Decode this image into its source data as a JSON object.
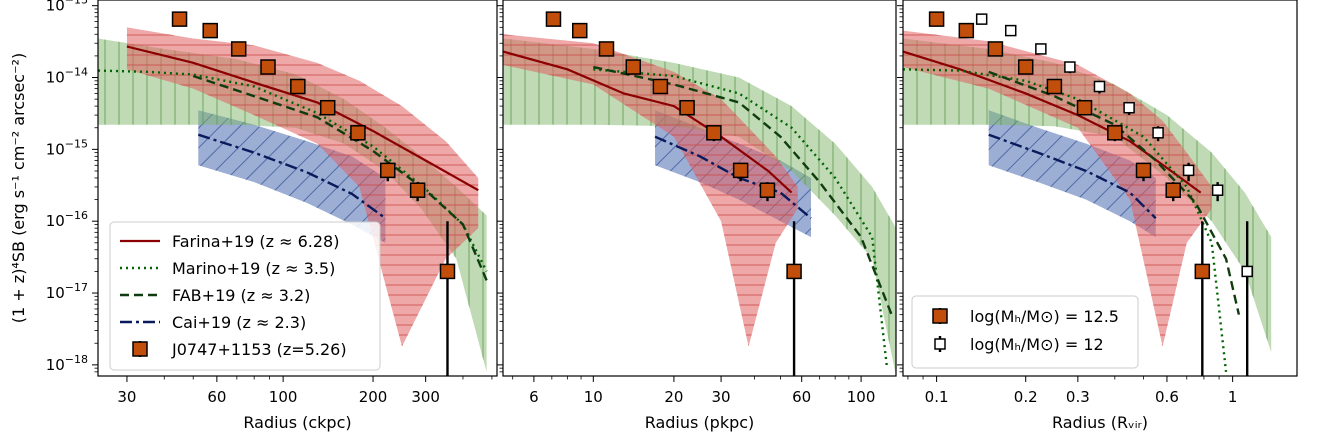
{
  "ylabel": "(1 + z)⁴SB (erg s⁻¹ cm⁻² arcsec⁻²)",
  "y_ticks": [
    {
      "value": 1e-13,
      "base": "10",
      "exp": "−13"
    },
    {
      "value": 1e-14,
      "base": "10",
      "exp": "−14"
    },
    {
      "value": 1e-15,
      "base": "10",
      "exp": "−15"
    },
    {
      "value": 1e-16,
      "base": "10",
      "exp": "−16"
    },
    {
      "value": 1e-17,
      "base": "10",
      "exp": "−17"
    },
    {
      "value": 1e-18,
      "base": "10",
      "exp": "−18"
    }
  ],
  "colors": {
    "farina": "#8b0000",
    "marino": "#006400",
    "fab": "#0f3d0f",
    "cai": "#0a1a5c",
    "red_band": "#e06060",
    "green_band": "#7fb56b",
    "blue_band": "#5a78b8",
    "square": "#c24e0b"
  },
  "legend_panel1": [
    {
      "label": "Farina+19 (z ≈ 6.28)",
      "style": "solid",
      "color": "#8b0000"
    },
    {
      "label": "Marino+19 (z ≈ 3.5)",
      "style": "dotted",
      "color": "#006400"
    },
    {
      "label": "FAB+19 (z ≈ 3.2)",
      "style": "dashed",
      "color": "#0f3d0f"
    },
    {
      "label": "Cai+19 (z ≈ 2.3)",
      "style": "dashdot",
      "color": "#0a1a5c"
    },
    {
      "label": "J0747+1153 (z=5.26)",
      "style": "square",
      "color": "#c24e0b"
    }
  ],
  "legend_panel3": [
    {
      "label": "log(Mₕ/M⊙) = 12.5",
      "style": "square-filled"
    },
    {
      "label": "log(Mₕ/M⊙) = 12",
      "style": "square-open"
    }
  ],
  "chart_data": [
    {
      "type": "line",
      "xlabel": "Radius (ckpc)",
      "xscale": "log",
      "yscale": "log",
      "xlim": [
        24,
        520
      ],
      "ylim": [
        7e-19,
        1.2e-13
      ],
      "xticks": [
        30,
        60,
        100,
        200,
        300
      ],
      "xtick_labels": [
        "30",
        "60",
        "100",
        "200",
        "300"
      ],
      "legend_loc": "lower-left",
      "series": [
        {
          "name": "Farina+19 (z ≈ 6.28)",
          "style": "solid",
          "x": [
            30,
            50,
            80,
            130,
            200,
            300,
            450
          ],
          "y": [
            2.7e-14,
            1.6e-14,
            8.5e-15,
            4.5e-15,
            1.8e-15,
            7e-16,
            2.7e-16
          ]
        },
        {
          "name": "Marino+19 (z ≈ 3.5)",
          "style": "dotted",
          "x": [
            24,
            35,
            50,
            80,
            130,
            200,
            300,
            400,
            480
          ],
          "y": [
            1.25e-14,
            1.2e-14,
            1.1e-14,
            7.5e-15,
            3.2e-15,
            1.1e-15,
            2.8e-16,
            9e-17,
            2e-17
          ]
        },
        {
          "name": "FAB+19 (z ≈ 3.2)",
          "style": "dashed",
          "x": [
            50,
            80,
            130,
            200,
            300,
            400,
            480
          ],
          "y": [
            1.05e-14,
            5.5e-15,
            2.8e-15,
            9.5e-16,
            2.7e-16,
            9e-17,
            1.5e-17
          ]
        },
        {
          "name": "Cai+19 (z ≈ 2.3)",
          "style": "dashdot",
          "x": [
            52,
            80,
            120,
            170,
            220
          ],
          "y": [
            1.6e-15,
            9e-16,
            4.8e-16,
            2.4e-16,
            1.1e-16
          ]
        }
      ],
      "bands": [
        {
          "name": "Farina+19 band",
          "color": "red",
          "hatch": "horizontal",
          "x": [
            30,
            50,
            80,
            130,
            180,
            250,
            350,
            450
          ],
          "upper": [
            5e-14,
            3.5e-14,
            2.8e-14,
            1.6e-14,
            9e-15,
            4e-15,
            1.3e-15,
            4e-16
          ],
          "lower": [
            1.3e-14,
            7e-15,
            3e-15,
            1.2e-15,
            3e-16,
            1.8e-18,
            3e-17,
            8e-17
          ]
        },
        {
          "name": "Marino+19 band",
          "color": "green",
          "hatch": "vertical",
          "x": [
            24,
            40,
            70,
            110,
            160,
            220,
            290,
            380,
            480
          ],
          "upper": [
            3.5e-14,
            2.5e-14,
            1.8e-14,
            1.1e-14,
            5e-15,
            2e-15,
            8e-16,
            3e-16,
            1.2e-16
          ],
          "lower": [
            2.2e-15,
            2.2e-15,
            2.2e-15,
            2e-15,
            1.2e-15,
            5e-16,
            1.5e-16,
            3e-17,
            8e-19
          ]
        },
        {
          "name": "Cai+19 band",
          "color": "blue",
          "hatch": "diagonal",
          "x": [
            52,
            80,
            120,
            170,
            220
          ],
          "upper": [
            3.5e-15,
            2.2e-15,
            1.3e-15,
            8e-16,
            4e-16
          ],
          "lower": [
            6e-16,
            3.5e-16,
            1.8e-16,
            9e-17,
            5e-17
          ]
        }
      ],
      "points": [
        {
          "name": "J0747+1153 (z=5.26)",
          "marker": "square",
          "fill": "filled",
          "x": [
            45,
            57,
            71,
            89,
            112,
            141,
            178,
            224,
            282,
            355
          ],
          "y": [
            6.5e-14,
            4.5e-14,
            2.5e-14,
            1.4e-14,
            7.5e-15,
            3.8e-15,
            1.7e-15,
            5.1e-16,
            2.7e-16,
            2e-17
          ],
          "yerr_low": [
            5.5e-14,
            4e-14,
            2.1e-14,
            1.15e-14,
            6e-15,
            3e-15,
            1.3e-15,
            3.6e-16,
            1.9e-16,
            7e-19
          ],
          "yerr_high": [
            7.5e-14,
            5.2e-14,
            2.9e-14,
            1.65e-14,
            9e-15,
            4.5e-15,
            2.1e-15,
            6.5e-16,
            3.5e-16,
            1e-16
          ]
        }
      ]
    },
    {
      "type": "line",
      "xlabel": "Radius (pkpc)",
      "xscale": "log",
      "yscale": "log",
      "xlim": [
        4.6,
        135
      ],
      "ylim": [
        7e-19,
        1.2e-13
      ],
      "xticks": [
        6,
        10,
        20,
        30,
        60,
        100
      ],
      "xtick_labels": [
        "6",
        "10",
        "20",
        "30",
        "60",
        "100"
      ],
      "series": [
        {
          "name": "Farina+19 (z ≈ 6.28)",
          "style": "solid",
          "x": [
            4.6,
            8,
            13,
            20,
            30,
            45,
            55
          ],
          "y": [
            2.3e-14,
            1.3e-14,
            6e-15,
            4e-15,
            1.5e-15,
            5e-16,
            2.5e-16
          ]
        },
        {
          "name": "Marino+19 (z ≈ 3.5)",
          "style": "dotted",
          "x": [
            10,
            20,
            35,
            55,
            80,
            110,
            125
          ],
          "y": [
            1.3e-14,
            1.05e-14,
            6e-15,
            2e-15,
            4e-16,
            6e-17,
            9e-19
          ]
        },
        {
          "name": "FAB+19 (z ≈ 3.2)",
          "style": "dashed",
          "x": [
            10,
            20,
            35,
            50,
            70,
            100,
            130
          ],
          "y": [
            1.4e-14,
            8e-15,
            4.5e-15,
            1.5e-15,
            3.5e-16,
            6e-17,
            5e-18
          ]
        },
        {
          "name": "Cai+19 (z ≈ 2.3)",
          "style": "dashdot",
          "x": [
            17,
            25,
            35,
            50,
            65
          ],
          "y": [
            1.5e-15,
            8e-16,
            4e-16,
            2.5e-16,
            1.1e-16
          ]
        }
      ],
      "bands": [
        {
          "name": "Farina+19 band",
          "color": "red",
          "hatch": "horizontal",
          "x": [
            4.6,
            10,
            20,
            30,
            38,
            48,
            58
          ],
          "upper": [
            4e-14,
            3e-14,
            1.2e-14,
            5e-15,
            2e-15,
            8e-16,
            3e-16
          ],
          "lower": [
            1.5e-14,
            8e-15,
            1.5e-15,
            1e-16,
            1.8e-18,
            5e-17,
            1.5e-16
          ]
        },
        {
          "name": "Marino+19 band",
          "color": "green",
          "hatch": "vertical",
          "x": [
            4.6,
            10,
            20,
            35,
            55,
            80,
            110,
            135
          ],
          "upper": [
            3.5e-14,
            2.5e-14,
            1.6e-14,
            1e-14,
            4e-15,
            1.2e-15,
            3e-16,
            8e-17
          ],
          "lower": [
            2.2e-15,
            2.2e-15,
            2.1e-15,
            1.5e-15,
            5e-16,
            1.2e-16,
            3e-17,
            7e-19
          ]
        },
        {
          "name": "Cai+19 band",
          "color": "blue",
          "hatch": "diagonal",
          "x": [
            17,
            25,
            35,
            50,
            65
          ],
          "upper": [
            3.5e-15,
            2e-15,
            1.2e-15,
            7e-16,
            4e-16
          ],
          "lower": [
            6e-16,
            3.5e-16,
            2e-16,
            1e-16,
            6e-17
          ]
        }
      ],
      "points": [
        {
          "name": "J0747+1153 (z=5.26)",
          "marker": "square",
          "fill": "filled",
          "x": [
            7.1,
            8.9,
            11.2,
            14.1,
            17.8,
            22.4,
            28.2,
            35.5,
            44.7,
            56.2
          ],
          "y": [
            6.5e-14,
            4.5e-14,
            2.5e-14,
            1.4e-14,
            7.5e-15,
            3.8e-15,
            1.7e-15,
            5.1e-16,
            2.7e-16,
            2e-17
          ],
          "yerr_low": [
            5.5e-14,
            4e-14,
            2.1e-14,
            1.15e-14,
            6e-15,
            3e-15,
            1.3e-15,
            3.6e-16,
            1.9e-16,
            7e-19
          ],
          "yerr_high": [
            7.5e-14,
            5.2e-14,
            2.9e-14,
            1.65e-14,
            9e-15,
            4.5e-15,
            2.1e-15,
            6.5e-16,
            3.5e-16,
            1e-16
          ]
        }
      ]
    },
    {
      "type": "line",
      "xlabel": "Radius (Rᵥᵢᵣ)",
      "xscale": "log",
      "yscale": "log",
      "xlim": [
        0.077,
        1.65
      ],
      "ylim": [
        7e-19,
        1.2e-13
      ],
      "xticks": [
        0.1,
        0.2,
        0.3,
        0.6,
        1
      ],
      "xtick_labels": [
        "0.1",
        "0.2",
        "0.3",
        "0.6",
        "1"
      ],
      "legend_loc": "lower-left",
      "series": [
        {
          "name": "Farina+19 (z ≈ 6.28)",
          "style": "solid",
          "x": [
            0.077,
            0.12,
            0.2,
            0.3,
            0.45,
            0.62,
            0.78
          ],
          "y": [
            2.3e-14,
            1.3e-14,
            6e-15,
            3e-15,
            1.3e-15,
            5e-16,
            2.5e-16
          ]
        },
        {
          "name": "Marino+19 (z ≈ 3.5)",
          "style": "dotted",
          "x": [
            0.077,
            0.12,
            0.2,
            0.3,
            0.5,
            0.7,
            0.85,
            0.95
          ],
          "y": [
            1.3e-14,
            1.25e-14,
            9e-15,
            5e-15,
            1.5e-15,
            3e-16,
            5e-17,
            8e-19
          ]
        },
        {
          "name": "FAB+19 (z ≈ 3.2)",
          "style": "dashed",
          "x": [
            0.15,
            0.25,
            0.4,
            0.55,
            0.75,
            0.95,
            1.05
          ],
          "y": [
            1.2e-14,
            5.5e-15,
            2.2e-15,
            7e-16,
            1.8e-16,
            3e-17,
            5e-18
          ]
        },
        {
          "name": "Cai+19 (z ≈ 2.3)",
          "style": "dashdot",
          "x": [
            0.15,
            0.22,
            0.32,
            0.45,
            0.55
          ],
          "y": [
            1.6e-15,
            9e-16,
            5e-16,
            2.5e-16,
            1.1e-16
          ]
        }
      ],
      "bands": [
        {
          "name": "Farina+19 band",
          "color": "red",
          "hatch": "horizontal",
          "x": [
            0.077,
            0.15,
            0.3,
            0.45,
            0.58,
            0.7,
            0.85
          ],
          "upper": [
            4.5e-14,
            3.2e-14,
            1.5e-14,
            6e-15,
            2.5e-15,
            9e-16,
            3e-16
          ],
          "lower": [
            1.4e-14,
            7e-15,
            2e-15,
            2e-16,
            1.8e-18,
            5e-17,
            1.5e-16
          ]
        },
        {
          "name": "Marino+19 band",
          "color": "green",
          "hatch": "vertical",
          "x": [
            0.077,
            0.15,
            0.25,
            0.4,
            0.6,
            0.85,
            1.1,
            1.35
          ],
          "upper": [
            3.5e-14,
            2.5e-14,
            1.6e-14,
            8e-15,
            3e-15,
            9e-16,
            2.5e-16,
            6e-17
          ],
          "lower": [
            2.2e-15,
            2.2e-15,
            2.1e-15,
            1.5e-15,
            4e-16,
            1e-16,
            2e-17,
            1.5e-18
          ]
        },
        {
          "name": "Cai+19 band",
          "color": "blue",
          "hatch": "diagonal",
          "x": [
            0.15,
            0.22,
            0.32,
            0.45,
            0.55
          ],
          "upper": [
            3.5e-15,
            2e-15,
            1.2e-15,
            7e-16,
            4e-16
          ],
          "lower": [
            6e-16,
            3.5e-16,
            2e-16,
            1e-16,
            6e-17
          ]
        }
      ],
      "points": [
        {
          "name": "log(Mₕ/M⊙) = 12.5",
          "marker": "square",
          "fill": "filled",
          "x": [
            0.1,
            0.126,
            0.158,
            0.2,
            0.25,
            0.316,
            0.4,
            0.5,
            0.63,
            0.79
          ],
          "y": [
            6.5e-14,
            4.5e-14,
            2.5e-14,
            1.4e-14,
            7.5e-15,
            3.8e-15,
            1.7e-15,
            5.1e-16,
            2.7e-16,
            2e-17
          ],
          "yerr_low": [
            5.5e-14,
            4e-14,
            2.1e-14,
            1.15e-14,
            6e-15,
            3e-15,
            1.3e-15,
            3.6e-16,
            1.9e-16,
            7e-19
          ],
          "yerr_high": [
            7.5e-14,
            5.2e-14,
            2.9e-14,
            1.65e-14,
            9e-15,
            4.5e-15,
            2.1e-15,
            6.5e-16,
            3.5e-16,
            1e-16
          ]
        },
        {
          "name": "log(Mₕ/M⊙) = 12",
          "marker": "square",
          "fill": "open",
          "x": [
            0.142,
            0.178,
            0.225,
            0.282,
            0.355,
            0.447,
            0.56,
            0.71,
            0.89,
            1.12
          ],
          "y": [
            6.5e-14,
            4.5e-14,
            2.5e-14,
            1.4e-14,
            7.5e-15,
            3.8e-15,
            1.7e-15,
            5.1e-16,
            2.7e-16,
            2e-17
          ],
          "yerr_low": [
            5.5e-14,
            4e-14,
            2.1e-14,
            1.15e-14,
            6e-15,
            3e-15,
            1.3e-15,
            3.6e-16,
            1.9e-16,
            7e-19
          ],
          "yerr_high": [
            7.5e-14,
            5.2e-14,
            2.9e-14,
            1.65e-14,
            9e-15,
            4.5e-15,
            2.1e-15,
            6.5e-16,
            3.5e-16,
            1e-16
          ]
        }
      ]
    }
  ]
}
